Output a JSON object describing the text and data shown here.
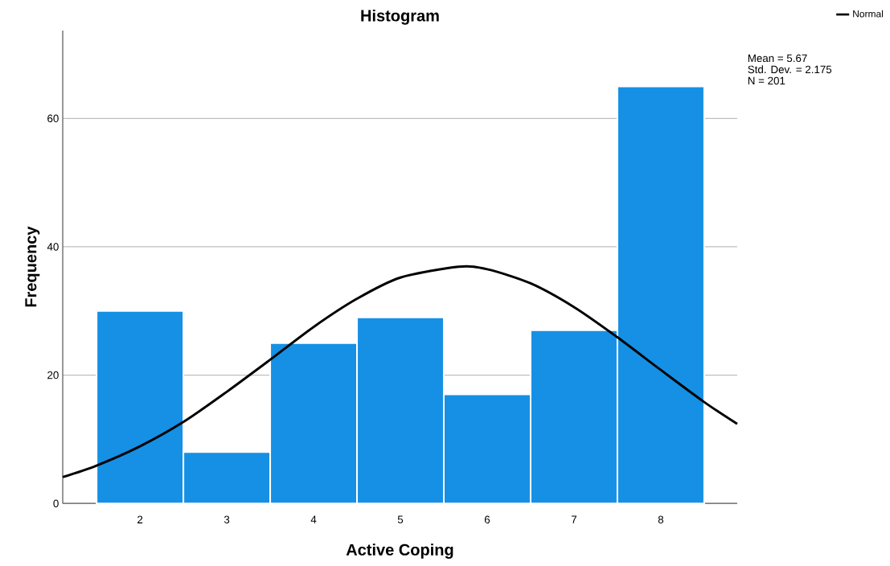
{
  "chart_data": {
    "type": "histogram",
    "title": "Histogram",
    "xlabel": "Active Coping",
    "ylabel": "Frequency",
    "bins": [
      1.5,
      2.5,
      3.5,
      4.5,
      5.5,
      6.5,
      7.5,
      8.5
    ],
    "values": [
      30,
      8,
      25,
      29,
      17,
      27,
      65
    ],
    "color": "#1590e5",
    "series": [
      {
        "name": "Normal",
        "type": "line",
        "color": "#000000",
        "x": [
          1.11,
          1.5,
          2,
          2.5,
          3,
          3.5,
          4,
          4.5,
          5,
          5.67,
          6,
          6.5,
          7,
          7.5,
          8,
          8.5,
          8.88
        ],
        "values": [
          4.1,
          5.9,
          8.9,
          12.7,
          17.4,
          22.4,
          27.5,
          31.9,
          35.2,
          36.9,
          36.5,
          34.3,
          30.6,
          25.9,
          20.8,
          15.8,
          12.4
        ]
      }
    ],
    "xlim": [
      1.11,
      8.88
    ],
    "ylim": [
      0,
      73.7
    ],
    "xticks": [
      2,
      3,
      4,
      5,
      6,
      7,
      8
    ],
    "yticks": [
      0,
      20,
      40,
      60
    ],
    "grid": "y",
    "legend": "top right",
    "annotations": [
      "Mean = 5.67",
      "Std. Dev. = 2.175",
      "N = 201"
    ]
  }
}
